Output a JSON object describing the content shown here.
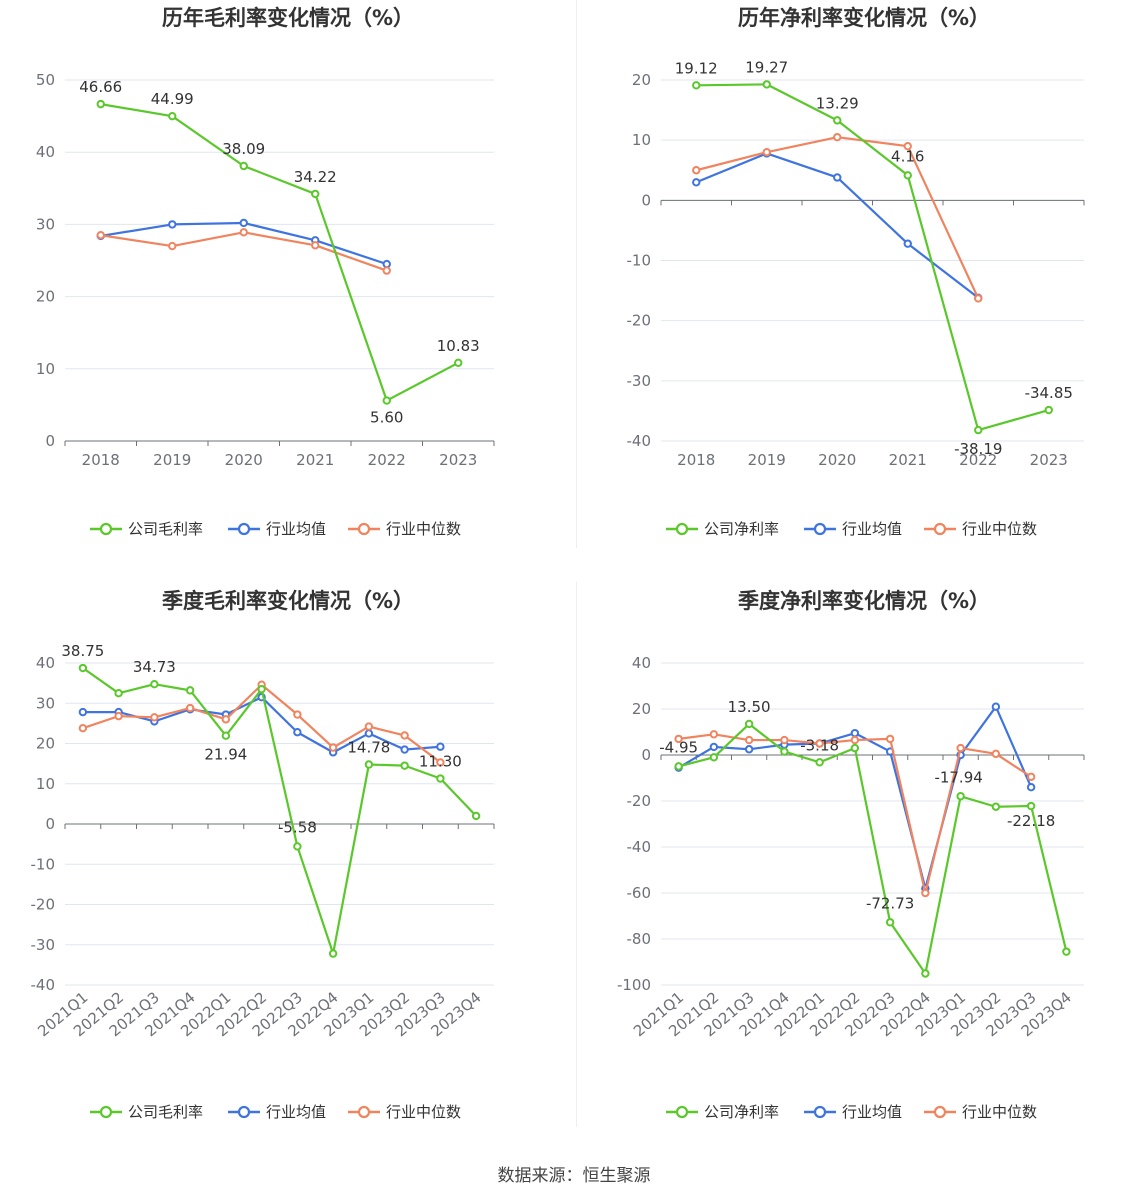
{
  "colors": {
    "company": "#5ac82b",
    "industry_avg": "#3f74e0",
    "industry_median": "#f0845f"
  },
  "footer": {
    "source": "数据来源：恒生聚源"
  },
  "chart_data": [
    {
      "id": "annual-gross",
      "type": "line",
      "title": "历年毛利率变化情况（%）",
      "categories": [
        "2018",
        "2019",
        "2020",
        "2021",
        "2022",
        "2023"
      ],
      "ylim": [
        0,
        50
      ],
      "yticks": [
        0,
        10,
        20,
        30,
        40,
        50
      ],
      "zero_baseline": false,
      "rotate_labels": false,
      "legend": [
        "公司毛利率",
        "行业均值",
        "行业中位数"
      ],
      "series": [
        {
          "key": "company",
          "name": "公司毛利率",
          "values": [
            46.66,
            44.99,
            38.09,
            34.22,
            5.6,
            10.83
          ],
          "labels": [
            "46.66",
            "44.99",
            "38.09",
            "34.22",
            "5.60",
            "10.83"
          ]
        },
        {
          "key": "industry_avg",
          "name": "行业均值",
          "values": [
            28.4,
            30.0,
            30.2,
            27.8,
            24.5,
            null
          ]
        },
        {
          "key": "industry_median",
          "name": "行业中位数",
          "values": [
            28.5,
            27.0,
            28.9,
            27.1,
            23.6,
            null
          ]
        }
      ]
    },
    {
      "id": "annual-net",
      "type": "line",
      "title": "历年净利率变化情况（%）",
      "categories": [
        "2018",
        "2019",
        "2020",
        "2021",
        "2022",
        "2023"
      ],
      "ylim": [
        -40,
        20
      ],
      "yticks": [
        -40,
        -30,
        -20,
        -10,
        0,
        10,
        20
      ],
      "zero_baseline": true,
      "rotate_labels": false,
      "legend": [
        "公司净利率",
        "行业均值",
        "行业中位数"
      ],
      "series": [
        {
          "key": "company",
          "name": "公司净利率",
          "values": [
            19.12,
            19.27,
            13.29,
            4.16,
            -38.19,
            -34.85
          ],
          "labels": [
            "19.12",
            "19.27",
            "13.29",
            "4.16",
            "-38.19",
            "-34.85"
          ]
        },
        {
          "key": "industry_avg",
          "name": "行业均值",
          "values": [
            3.0,
            7.8,
            3.8,
            -7.2,
            -16.2,
            null
          ]
        },
        {
          "key": "industry_median",
          "name": "行业中位数",
          "values": [
            5.0,
            8.0,
            10.5,
            9.0,
            -16.3,
            null
          ]
        }
      ]
    },
    {
      "id": "quarterly-gross",
      "type": "line",
      "title": "季度毛利率变化情况（%）",
      "categories": [
        "2021Q1",
        "2021Q2",
        "2021Q3",
        "2021Q4",
        "2022Q1",
        "2022Q2",
        "2022Q3",
        "2022Q4",
        "2023Q1",
        "2023Q2",
        "2023Q3",
        "2023Q4"
      ],
      "ylim": [
        -40,
        40
      ],
      "yticks": [
        -40,
        -30,
        -20,
        -10,
        0,
        10,
        20,
        30,
        40
      ],
      "zero_baseline": true,
      "rotate_labels": true,
      "legend": [
        "公司毛利率",
        "行业均值",
        "行业中位数"
      ],
      "series": [
        {
          "key": "company",
          "name": "公司毛利率",
          "values": [
            38.75,
            32.5,
            34.73,
            33.2,
            21.94,
            33.5,
            -5.58,
            -32.2,
            14.78,
            14.5,
            11.3,
            2.0
          ],
          "labels": [
            "38.75",
            null,
            "34.73",
            null,
            "21.94",
            null,
            "-5.58",
            null,
            "14.78",
            null,
            "11.30",
            null
          ]
        },
        {
          "key": "industry_avg",
          "name": "行业均值",
          "values": [
            27.8,
            27.8,
            25.5,
            28.5,
            27.2,
            31.5,
            22.8,
            17.8,
            22.5,
            18.5,
            19.2,
            null
          ]
        },
        {
          "key": "industry_median",
          "name": "行业中位数",
          "values": [
            23.8,
            26.8,
            26.5,
            28.8,
            26.0,
            34.6,
            27.2,
            19.0,
            24.2,
            22.0,
            15.3,
            null
          ]
        }
      ]
    },
    {
      "id": "quarterly-net",
      "type": "line",
      "title": "季度净利率变化情况（%）",
      "categories": [
        "2021Q1",
        "2021Q2",
        "2021Q3",
        "2021Q4",
        "2022Q1",
        "2022Q2",
        "2022Q3",
        "2022Q4",
        "2023Q1",
        "2023Q2",
        "2023Q3",
        "2023Q4"
      ],
      "ylim": [
        -100,
        40
      ],
      "yticks": [
        -100,
        -80,
        -60,
        -40,
        -20,
        0,
        20,
        40
      ],
      "zero_baseline": true,
      "rotate_labels": true,
      "legend": [
        "公司净利率",
        "行业均值",
        "行业中位数"
      ],
      "series": [
        {
          "key": "company",
          "name": "公司净利率",
          "values": [
            -4.95,
            -1.0,
            13.5,
            1.5,
            -3.18,
            3.0,
            -72.73,
            -95.0,
            -17.94,
            -22.5,
            -22.18,
            -85.5
          ],
          "labels": [
            "-4.95",
            null,
            "13.50",
            null,
            "-3.18",
            null,
            "-72.73",
            null,
            "-17.94",
            null,
            "-22.18",
            null
          ]
        },
        {
          "key": "industry_avg",
          "name": "行业均值",
          "values": [
            -5.5,
            3.5,
            2.5,
            4.5,
            5.0,
            9.5,
            1.5,
            -58.0,
            0.0,
            21.0,
            -14.0,
            null
          ]
        },
        {
          "key": "industry_median",
          "name": "行业中位数",
          "values": [
            7.0,
            9.0,
            6.5,
            6.5,
            5.0,
            6.5,
            7.0,
            -60.0,
            3.0,
            0.5,
            -9.5,
            null
          ]
        }
      ]
    }
  ]
}
